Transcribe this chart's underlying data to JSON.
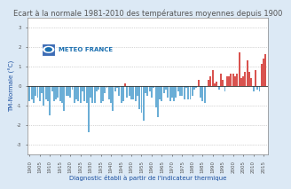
{
  "title": "Ecart à la normale 1981-2010 des températures moyennes depuis 1900",
  "xlabel": "Diagnostic établi à partir de l'indicateur thermique",
  "ylabel": "TM-Normale (°C)",
  "ylim": [
    -3.5,
    3.5
  ],
  "yticks": [
    -3.0,
    -2.0,
    -1.0,
    0.0,
    1.0,
    2.0,
    3.0
  ],
  "background_color": "#dce9f5",
  "plot_bg_color": "#ffffff",
  "grid_color": "#b0b0b0",
  "years": [
    1900,
    1901,
    1902,
    1903,
    1904,
    1905,
    1906,
    1907,
    1908,
    1909,
    1910,
    1911,
    1912,
    1913,
    1914,
    1915,
    1916,
    1917,
    1918,
    1919,
    1920,
    1921,
    1922,
    1923,
    1924,
    1925,
    1926,
    1927,
    1928,
    1929,
    1930,
    1931,
    1932,
    1933,
    1934,
    1935,
    1936,
    1937,
    1938,
    1939,
    1940,
    1941,
    1942,
    1943,
    1944,
    1945,
    1946,
    1947,
    1948,
    1949,
    1950,
    1951,
    1952,
    1953,
    1954,
    1955,
    1956,
    1957,
    1958,
    1959,
    1960,
    1961,
    1962,
    1963,
    1964,
    1965,
    1966,
    1967,
    1968,
    1969,
    1970,
    1971,
    1972,
    1973,
    1974,
    1975,
    1976,
    1977,
    1978,
    1979,
    1980,
    1981,
    1982,
    1983,
    1984,
    1985,
    1986,
    1987,
    1988,
    1989,
    1990,
    1991,
    1992,
    1993,
    1994,
    1995,
    1996,
    1997,
    1998,
    1999,
    2000,
    2001,
    2002,
    2003,
    2004,
    2005,
    2006,
    2007,
    2008,
    2009,
    2010,
    2011,
    2012,
    2013,
    2014,
    2015,
    2016
  ],
  "values": [
    -0.8,
    -0.7,
    -0.9,
    -0.5,
    -0.6,
    -0.8,
    -0.4,
    -1.0,
    -0.7,
    -0.8,
    -1.5,
    -0.3,
    -0.8,
    -0.7,
    -0.6,
    -0.8,
    -0.9,
    -1.3,
    -0.5,
    -0.5,
    -0.6,
    -0.2,
    -0.9,
    -0.7,
    -0.8,
    -0.9,
    -0.3,
    -0.8,
    -0.9,
    -2.4,
    -0.6,
    -0.9,
    -0.9,
    -0.3,
    -0.2,
    -0.9,
    -0.8,
    -0.4,
    -0.1,
    -0.7,
    -0.9,
    -1.3,
    -0.3,
    -0.1,
    -0.5,
    -0.9,
    -0.8,
    0.1,
    -0.6,
    -0.5,
    -0.7,
    -0.7,
    -0.8,
    -0.5,
    -1.2,
    -1.4,
    -1.8,
    -0.4,
    -0.5,
    -0.3,
    -0.6,
    -0.1,
    -1.1,
    -1.6,
    -0.7,
    -0.8,
    -0.4,
    -0.2,
    -0.6,
    -0.8,
    -0.6,
    -0.8,
    -0.6,
    -0.3,
    -0.5,
    -0.5,
    -0.7,
    -0.1,
    -0.7,
    -0.7,
    -0.5,
    -0.2,
    -0.1,
    0.3,
    -0.6,
    -0.8,
    -0.9,
    0.0,
    0.3,
    0.5,
    0.8,
    0.1,
    0.2,
    -0.2,
    0.6,
    0.3,
    -0.3,
    0.5,
    0.5,
    0.6,
    0.6,
    0.5,
    0.6,
    1.7,
    0.4,
    0.5,
    0.7,
    1.3,
    0.7,
    0.4,
    -0.3,
    0.8,
    -0.2,
    -0.3,
    1.1,
    1.4,
    1.6
  ],
  "color_positive": "#d9534f",
  "color_negative": "#6baed6",
  "logo_color": "#1a6fb0",
  "logo_bg": "#3d6cb5",
  "label_text": "METEO FRANCE",
  "title_fontsize": 6.0,
  "label_fontsize": 5.0,
  "tick_fontsize": 4.0,
  "title_color": "#555555",
  "axis_label_color": "#1a4fa0",
  "tick_color": "#555555",
  "spine_color": "#888888"
}
